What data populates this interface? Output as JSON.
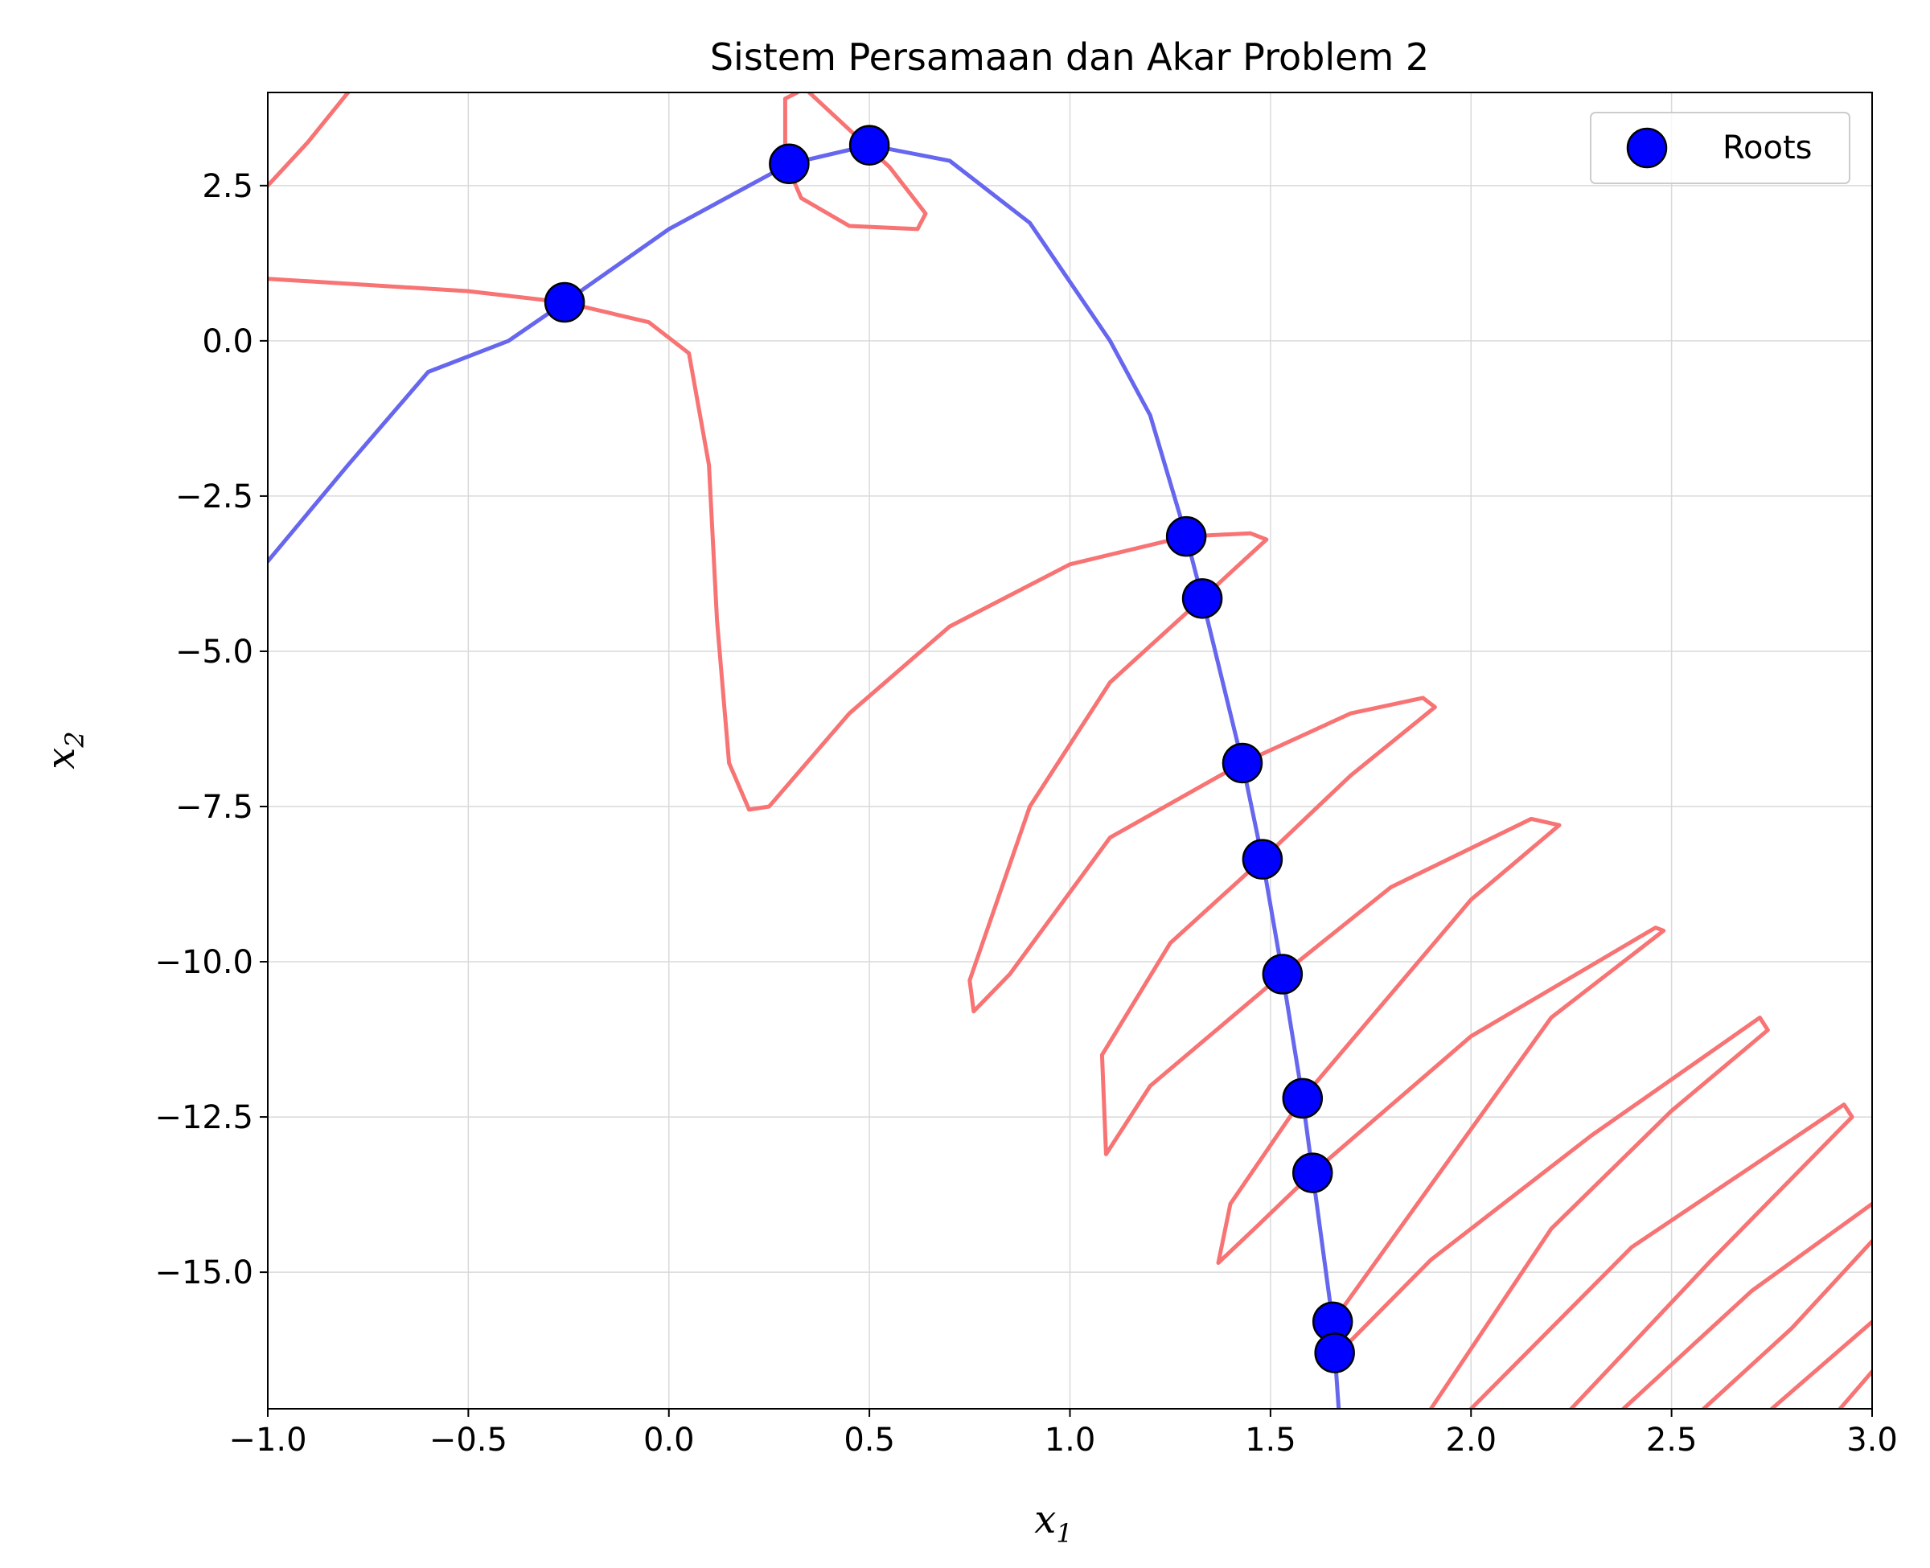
{
  "chart_data": {
    "type": "line",
    "title": "Sistem Persamaan dan Akar Problem 2",
    "xlabel": "x",
    "xlabel_sub": "1",
    "ylabel": "x",
    "ylabel_sub": "2",
    "xlim": [
      -1.0,
      3.0
    ],
    "ylim": [
      -17.2,
      4.0
    ],
    "grid": true,
    "legend_position": "top-right",
    "x_ticks": [
      -1.0,
      -0.5,
      0.0,
      0.5,
      1.0,
      1.5,
      2.0,
      2.5,
      3.0
    ],
    "x_tick_labels": [
      "−1.0",
      "−0.5",
      "0.0",
      "0.5",
      "1.0",
      "1.5",
      "2.0",
      "2.5",
      "3.0"
    ],
    "y_ticks": [
      2.5,
      0.0,
      -2.5,
      -5.0,
      -7.5,
      -10.0,
      -12.5,
      -15.0
    ],
    "y_tick_labels": [
      "2.5",
      "0.0",
      "−2.5",
      "−5.0",
      "−7.5",
      "−10.0",
      "−12.5",
      "−15.0"
    ],
    "colors": {
      "blue_curve": "#6666ee",
      "red_curve": "#f87373",
      "roots": "#0000ff",
      "root_edge": "#000000"
    },
    "blue_curve": [
      [
        -1.0,
        -3.55
      ],
      [
        -0.8,
        -2.0
      ],
      [
        -0.6,
        -0.5
      ],
      [
        -0.4,
        0.0
      ],
      [
        -0.26,
        0.62
      ],
      [
        0.0,
        1.8
      ],
      [
        0.3,
        2.85
      ],
      [
        0.5,
        3.15
      ],
      [
        0.7,
        2.9
      ],
      [
        0.9,
        1.9
      ],
      [
        1.1,
        0.0
      ],
      [
        1.2,
        -1.2
      ],
      [
        1.29,
        -3.15
      ],
      [
        1.33,
        -4.15
      ],
      [
        1.43,
        -6.8
      ],
      [
        1.48,
        -8.35
      ],
      [
        1.53,
        -10.2
      ],
      [
        1.58,
        -12.2
      ],
      [
        1.605,
        -13.4
      ],
      [
        1.655,
        -15.8
      ],
      [
        1.67,
        -17.2
      ]
    ],
    "red_curves": [
      [
        [
          -1.0,
          2.5
        ],
        [
          -0.9,
          3.2
        ],
        [
          -0.8,
          4.0
        ]
      ],
      [
        [
          -1.0,
          1.0
        ],
        [
          -0.5,
          0.8
        ],
        [
          -0.26,
          0.62
        ],
        [
          -0.05,
          0.3
        ],
        [
          0.05,
          -0.2
        ],
        [
          0.1,
          -2.0
        ],
        [
          0.12,
          -4.5
        ],
        [
          0.15,
          -6.8
        ],
        [
          0.2,
          -7.55
        ],
        [
          0.25,
          -7.5
        ],
        [
          0.45,
          -6.0
        ],
        [
          0.7,
          -4.6
        ],
        [
          1.0,
          -3.6
        ],
        [
          1.29,
          -3.15
        ],
        [
          1.45,
          -3.1
        ],
        [
          1.49,
          -3.2
        ],
        [
          1.33,
          -4.15
        ],
        [
          1.1,
          -5.5
        ],
        [
          0.9,
          -7.5
        ],
        [
          0.75,
          -10.3
        ],
        [
          0.76,
          -10.8
        ],
        [
          0.85,
          -10.2
        ],
        [
          1.1,
          -8.0
        ],
        [
          1.43,
          -6.8
        ],
        [
          1.7,
          -6.0
        ],
        [
          1.88,
          -5.75
        ],
        [
          1.91,
          -5.9
        ],
        [
          1.7,
          -7.0
        ],
        [
          1.48,
          -8.35
        ],
        [
          1.25,
          -9.7
        ],
        [
          1.08,
          -11.5
        ],
        [
          1.09,
          -13.1
        ],
        [
          1.2,
          -12.0
        ],
        [
          1.53,
          -10.2
        ],
        [
          1.8,
          -8.8
        ],
        [
          2.15,
          -7.7
        ],
        [
          2.22,
          -7.8
        ],
        [
          2.0,
          -9.0
        ],
        [
          1.58,
          -12.2
        ],
        [
          1.4,
          -13.9
        ],
        [
          1.37,
          -14.85
        ],
        [
          1.46,
          -14.3
        ],
        [
          1.605,
          -13.4
        ],
        [
          2.0,
          -11.2
        ],
        [
          2.46,
          -9.45
        ],
        [
          2.48,
          -9.5
        ],
        [
          2.2,
          -10.9
        ],
        [
          1.655,
          -15.8
        ],
        [
          1.67,
          -16.3
        ],
        [
          1.9,
          -14.8
        ],
        [
          2.3,
          -12.8
        ],
        [
          2.72,
          -10.9
        ],
        [
          2.74,
          -11.1
        ],
        [
          2.5,
          -12.4
        ],
        [
          2.2,
          -14.3
        ],
        [
          1.9,
          -17.2
        ]
      ],
      [
        [
          0.29,
          2.9
        ],
        [
          0.29,
          3.9
        ],
        [
          0.32,
          4.0
        ]
      ],
      [
        [
          0.35,
          4.0
        ],
        [
          0.55,
          2.8
        ],
        [
          0.64,
          2.05
        ],
        [
          0.62,
          1.8
        ],
        [
          0.45,
          1.85
        ],
        [
          0.33,
          2.3
        ],
        [
          0.29,
          2.9
        ]
      ],
      [
        [
          2.0,
          -17.2
        ],
        [
          2.4,
          -14.6
        ],
        [
          2.93,
          -12.3
        ],
        [
          2.95,
          -12.5
        ],
        [
          2.6,
          -14.8
        ],
        [
          2.25,
          -17.2
        ]
      ],
      [
        [
          2.38,
          -17.2
        ],
        [
          2.7,
          -15.3
        ],
        [
          3.0,
          -13.9
        ]
      ],
      [
        [
          2.58,
          -17.2
        ],
        [
          2.8,
          -15.9
        ],
        [
          3.0,
          -14.5
        ]
      ],
      [
        [
          2.75,
          -17.2
        ],
        [
          3.0,
          -15.8
        ]
      ],
      [
        [
          2.92,
          -17.2
        ],
        [
          3.0,
          -16.6
        ]
      ]
    ],
    "roots": [
      [
        -0.26,
        0.62
      ],
      [
        0.3,
        2.85
      ],
      [
        0.5,
        3.15
      ],
      [
        1.29,
        -3.15
      ],
      [
        1.33,
        -4.15
      ],
      [
        1.43,
        -6.8
      ],
      [
        1.48,
        -8.35
      ],
      [
        1.53,
        -10.2
      ],
      [
        1.58,
        -12.2
      ],
      [
        1.605,
        -13.4
      ],
      [
        1.655,
        -15.8
      ],
      [
        1.66,
        -16.3
      ]
    ],
    "legend": [
      {
        "label": "Roots",
        "marker": "circle"
      }
    ]
  }
}
